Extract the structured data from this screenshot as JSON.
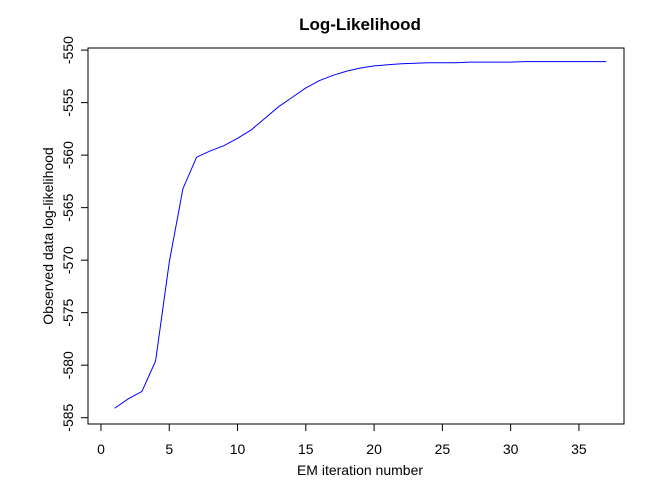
{
  "chart_data": {
    "type": "line",
    "title": "Log-Likelihood",
    "x_label": "EM iteration number",
    "y_label": "Observed data log-likelihood",
    "x": [
      1,
      2,
      3,
      4,
      5,
      6,
      7,
      8,
      9,
      10,
      11,
      12,
      13,
      14,
      15,
      16,
      17,
      18,
      19,
      20,
      21,
      22,
      23,
      24,
      25,
      26,
      27,
      28,
      29,
      30,
      31,
      32,
      33,
      34,
      35,
      36,
      37
    ],
    "series": [
      {
        "color": "#0000ff",
        "values": [
          -584.1,
          -583.2,
          -582.5,
          -579.6,
          -570.2,
          -563.2,
          -560.2,
          -559.6,
          -559.1,
          -558.4,
          -557.6,
          -556.5,
          -555.4,
          -554.5,
          -553.6,
          -552.9,
          -552.4,
          -552.0,
          -551.7,
          -551.5,
          -551.4,
          -551.3,
          -551.25,
          -551.2,
          -551.2,
          -551.2,
          -551.15,
          -551.15,
          -551.15,
          -551.15,
          -551.1,
          -551.1,
          -551.1,
          -551.1,
          -551.1,
          -551.1,
          -551.1
        ]
      }
    ],
    "xlim": [
      -0.95,
      38.3
    ],
    "ylim": [
      -585.6,
      -549.8
    ],
    "xticks": [
      0,
      5,
      10,
      15,
      20,
      25,
      30,
      35
    ],
    "yticks": [
      -585,
      -580,
      -575,
      -570,
      -565,
      -560,
      -555,
      -550
    ]
  }
}
